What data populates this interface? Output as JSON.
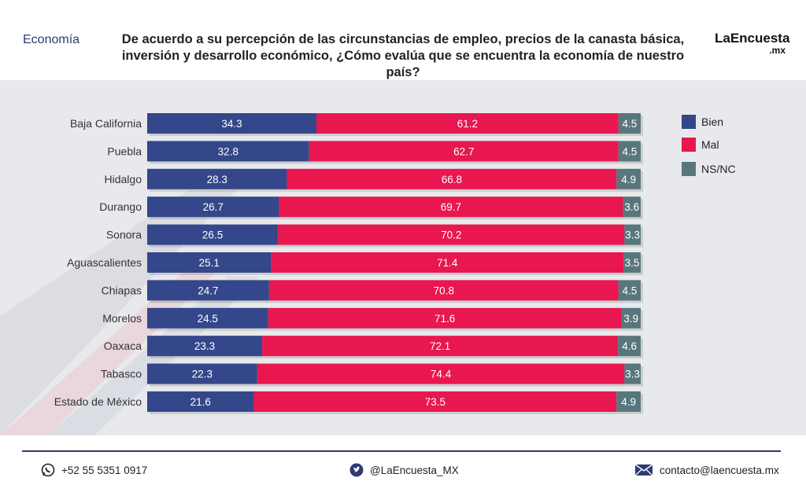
{
  "header": {
    "section": "Economía",
    "question_line1": "De acuerdo a su percepción de las circunstancias de empleo, precios de la canasta básica,",
    "question_line2": "inversión y desarrollo económico, ¿Cómo evalúa que se encuentra la economía de nuestro país?",
    "brand_main": "LaEncuesta",
    "brand_sub": ".mx"
  },
  "colors": {
    "bien": "#34478a",
    "mal": "#e8174f",
    "nsnc": "#58777c",
    "section_text": "#2d3a73"
  },
  "legend": [
    {
      "label": "Bien",
      "color": "#34478a"
    },
    {
      "label": "Mal",
      "color": "#e8174f"
    },
    {
      "label": "NS/NC",
      "color": "#58777c"
    }
  ],
  "chart_data": {
    "type": "bar",
    "stacked": true,
    "orientation": "horizontal",
    "categories": [
      "Baja California",
      "Puebla",
      "Hidalgo",
      "Durango",
      "Sonora",
      "Aguascalientes",
      "Chiapas",
      "Morelos",
      "Oaxaca",
      "Tabasco",
      "Estado de México"
    ],
    "series": [
      {
        "name": "Bien",
        "values": [
          34.3,
          32.8,
          28.3,
          26.7,
          26.5,
          25.1,
          24.7,
          24.5,
          23.3,
          22.3,
          21.6
        ]
      },
      {
        "name": "Mal",
        "values": [
          61.2,
          62.7,
          66.8,
          69.7,
          70.2,
          71.4,
          70.8,
          71.6,
          72.1,
          74.4,
          73.5
        ]
      },
      {
        "name": "NS/NC",
        "values": [
          4.5,
          4.5,
          4.9,
          3.6,
          3.3,
          3.5,
          4.5,
          3.9,
          4.6,
          3.3,
          4.9
        ]
      }
    ],
    "legend_position": "right",
    "grid": false
  },
  "footer": {
    "phone": "+52 55 5351 0917",
    "twitter": "@LaEncuesta_MX",
    "email": "contacto@laencuesta.mx"
  }
}
